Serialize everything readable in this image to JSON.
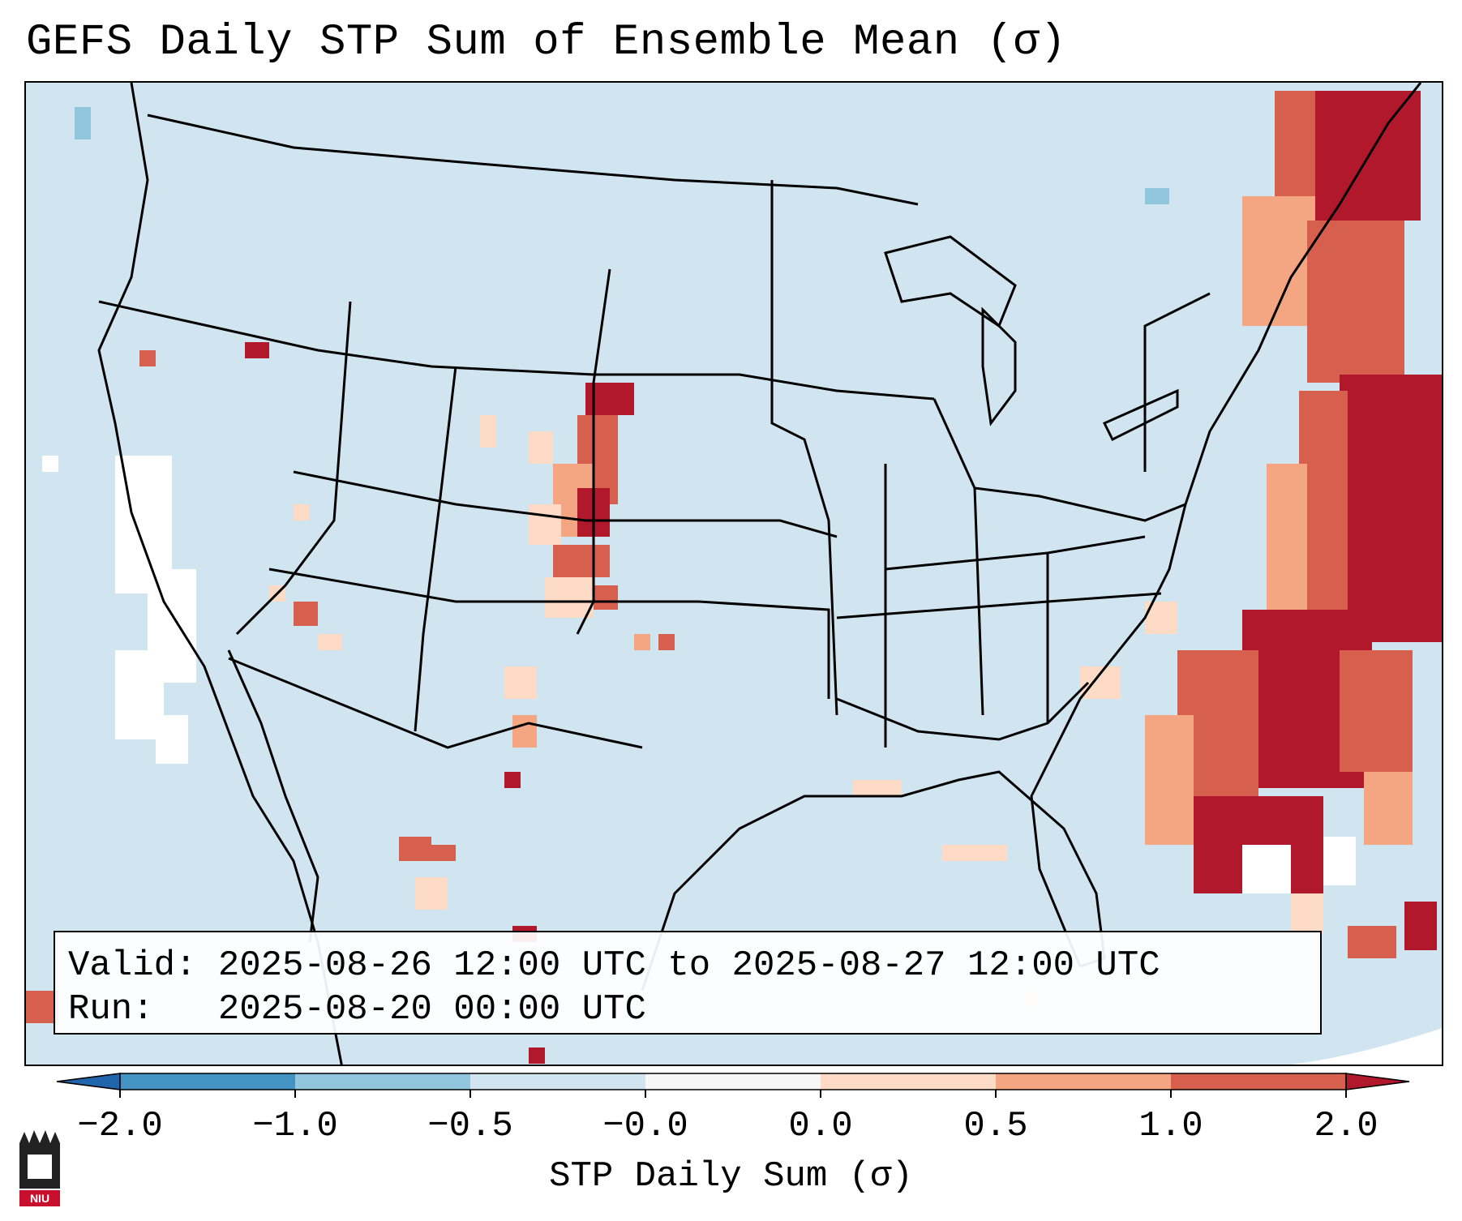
{
  "title": "GEFS Daily STP Sum of Ensemble Mean (σ)",
  "valid_label": "Valid:",
  "valid_value": "2025-08-26 12:00 UTC to 2025-08-27 12:00 UTC",
  "run_label": "Run:",
  "run_value": "2025-08-20 00:00 UTC",
  "logo_text": "NIU",
  "colors": {
    "ocean_land": "#d1e5f0",
    "outside": "#ffffff",
    "border": "#000000"
  },
  "colorbar": {
    "title": "STP Daily Sum (σ)",
    "ticks": [
      "−2.0",
      "−1.0",
      "−0.5",
      "−0.0",
      "0.0",
      "0.5",
      "1.0",
      "2.0"
    ],
    "bins": [
      {
        "from": "−2.0",
        "to": "−1.0",
        "color": "#4393c3"
      },
      {
        "from": "−1.0",
        "to": "−0.5",
        "color": "#92c5de"
      },
      {
        "from": "−0.5",
        "to": "−0.0",
        "color": "#d1e5f0"
      },
      {
        "from": "−0.0",
        "to": "0.0",
        "color": "#f7f7f7"
      },
      {
        "from": "0.0",
        "to": "0.5",
        "color": "#fddbc7"
      },
      {
        "from": "0.5",
        "to": "1.0",
        "color": "#f4a582"
      },
      {
        "from": "1.0",
        "to": "2.0",
        "color": "#d6604d"
      }
    ],
    "under_color": "#2166ac",
    "over_color": "#b2182b"
  }
}
